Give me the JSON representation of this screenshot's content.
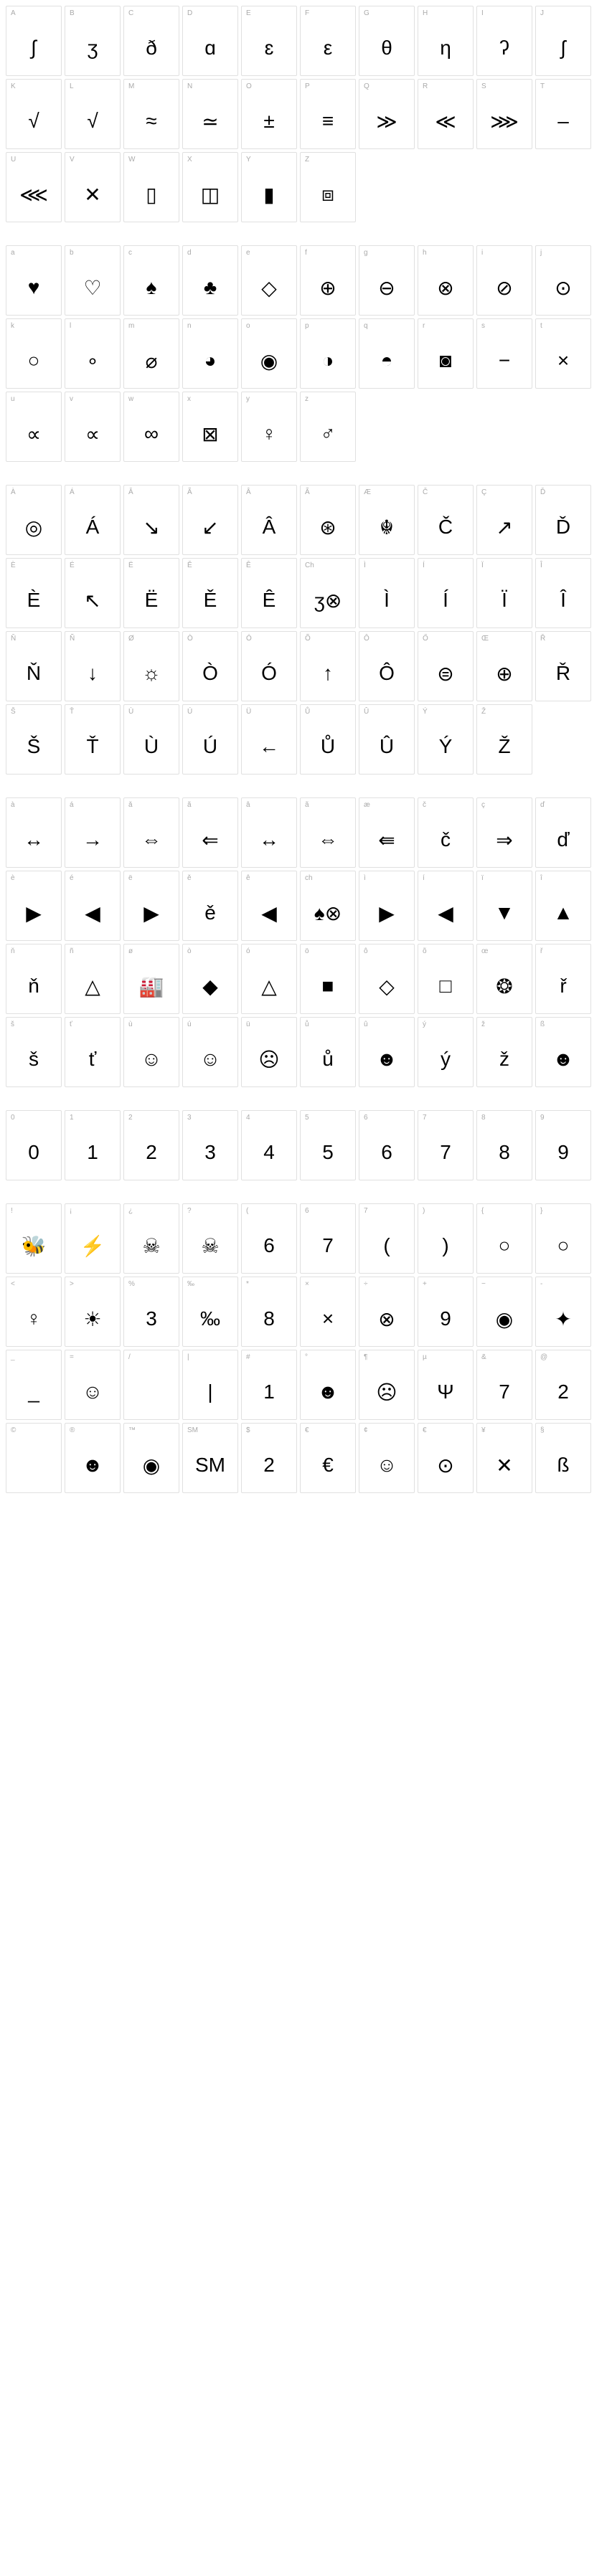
{
  "sections": [
    {
      "cells": [
        {
          "label": "A",
          "glyph": "∫"
        },
        {
          "label": "B",
          "glyph": "ʒ"
        },
        {
          "label": "C",
          "glyph": "ð"
        },
        {
          "label": "D",
          "glyph": "ɑ"
        },
        {
          "label": "E",
          "glyph": "ɛ"
        },
        {
          "label": "F",
          "glyph": "ε"
        },
        {
          "label": "G",
          "glyph": "θ"
        },
        {
          "label": "H",
          "glyph": "η"
        },
        {
          "label": "I",
          "glyph": "ʔ"
        },
        {
          "label": "J",
          "glyph": "ʃ"
        },
        {
          "label": "K",
          "glyph": "√"
        },
        {
          "label": "L",
          "glyph": "√"
        },
        {
          "label": "M",
          "glyph": "≈"
        },
        {
          "label": "N",
          "glyph": "≃"
        },
        {
          "label": "O",
          "glyph": "±"
        },
        {
          "label": "P",
          "glyph": "≡"
        },
        {
          "label": "Q",
          "glyph": "≫"
        },
        {
          "label": "R",
          "glyph": "≪"
        },
        {
          "label": "S",
          "glyph": "⋙"
        },
        {
          "label": "T",
          "glyph": "–"
        },
        {
          "label": "U",
          "glyph": "⋘"
        },
        {
          "label": "V",
          "glyph": "✕"
        },
        {
          "label": "W",
          "glyph": "▯"
        },
        {
          "label": "X",
          "glyph": "◫"
        },
        {
          "label": "Y",
          "glyph": "▮"
        },
        {
          "label": "Z",
          "glyph": "⧈"
        }
      ]
    },
    {
      "cells": [
        {
          "label": "a",
          "glyph": "♥"
        },
        {
          "label": "b",
          "glyph": "♡"
        },
        {
          "label": "c",
          "glyph": "♠"
        },
        {
          "label": "d",
          "glyph": "♣"
        },
        {
          "label": "e",
          "glyph": "◇"
        },
        {
          "label": "f",
          "glyph": "⊕"
        },
        {
          "label": "g",
          "glyph": "⊖"
        },
        {
          "label": "h",
          "glyph": "⊗"
        },
        {
          "label": "i",
          "glyph": "⊘"
        },
        {
          "label": "j",
          "glyph": "⊙"
        },
        {
          "label": "k",
          "glyph": "○"
        },
        {
          "label": "l",
          "glyph": "∘"
        },
        {
          "label": "m",
          "glyph": "⌀"
        },
        {
          "label": "n",
          "glyph": "◕"
        },
        {
          "label": "o",
          "glyph": "◉"
        },
        {
          "label": "p",
          "glyph": "◑"
        },
        {
          "label": "q",
          "glyph": "◓"
        },
        {
          "label": "r",
          "glyph": "◙"
        },
        {
          "label": "s",
          "glyph": "−"
        },
        {
          "label": "t",
          "glyph": "×"
        },
        {
          "label": "u",
          "glyph": "∝"
        },
        {
          "label": "v",
          "glyph": "∝"
        },
        {
          "label": "w",
          "glyph": "∞"
        },
        {
          "label": "x",
          "glyph": "⊠"
        },
        {
          "label": "y",
          "glyph": "♀"
        },
        {
          "label": "z",
          "glyph": "♂"
        }
      ]
    },
    {
      "cells": [
        {
          "label": "À",
          "glyph": "◎"
        },
        {
          "label": "Á",
          "glyph": "Á"
        },
        {
          "label": "Ǎ",
          "glyph": "↘"
        },
        {
          "label": "Ã",
          "glyph": "↙"
        },
        {
          "label": "Â",
          "glyph": "Â"
        },
        {
          "label": "Ã",
          "glyph": "⊛"
        },
        {
          "label": "Æ",
          "glyph": "☬"
        },
        {
          "label": "Č",
          "glyph": "Č"
        },
        {
          "label": "Ç",
          "glyph": "↗"
        },
        {
          "label": "Ď",
          "glyph": "Ď"
        },
        {
          "label": "È",
          "glyph": "È"
        },
        {
          "label": "É",
          "glyph": "↖"
        },
        {
          "label": "Ë",
          "glyph": "Ë"
        },
        {
          "label": "Ě",
          "glyph": "Ě"
        },
        {
          "label": "Ê",
          "glyph": "Ê"
        },
        {
          "label": "Ch",
          "glyph": "ʒ⊗"
        },
        {
          "label": "Ì",
          "glyph": "Ì"
        },
        {
          "label": "Í",
          "glyph": "Í"
        },
        {
          "label": "Ï",
          "glyph": "Ï"
        },
        {
          "label": "Î",
          "glyph": "Î"
        },
        {
          "label": "Ň",
          "glyph": "Ň"
        },
        {
          "label": "Ñ",
          "glyph": "↓"
        },
        {
          "label": "Ø",
          "glyph": "☼"
        },
        {
          "label": "Ò",
          "glyph": "Ò"
        },
        {
          "label": "Ó",
          "glyph": "Ó"
        },
        {
          "label": "Õ",
          "glyph": "↑"
        },
        {
          "label": "Ô",
          "glyph": "Ô"
        },
        {
          "label": "Ő",
          "glyph": "⊜"
        },
        {
          "label": "Œ",
          "glyph": "⊕"
        },
        {
          "label": "Ř",
          "glyph": "Ř"
        },
        {
          "label": "Š",
          "glyph": "Š"
        },
        {
          "label": "Ť",
          "glyph": "Ť"
        },
        {
          "label": "Ù",
          "glyph": "Ù"
        },
        {
          "label": "Ú",
          "glyph": "Ú"
        },
        {
          "label": "Ü",
          "glyph": "←"
        },
        {
          "label": "Ů",
          "glyph": "Ů"
        },
        {
          "label": "Û",
          "glyph": "Û"
        },
        {
          "label": "Ý",
          "glyph": "Ý"
        },
        {
          "label": "Ž",
          "glyph": "Ž"
        }
      ]
    },
    {
      "cells": [
        {
          "label": "à",
          "glyph": "↔"
        },
        {
          "label": "á",
          "glyph": "→"
        },
        {
          "label": "ǎ",
          "glyph": "⇔"
        },
        {
          "label": "ã",
          "glyph": "⇐"
        },
        {
          "label": "â",
          "glyph": "↔"
        },
        {
          "label": "ã",
          "glyph": "⇔"
        },
        {
          "label": "æ",
          "glyph": "⇚"
        },
        {
          "label": "č",
          "glyph": "č"
        },
        {
          "label": "ç",
          "glyph": "⇒"
        },
        {
          "label": "ď",
          "glyph": "ď"
        },
        {
          "label": "è",
          "glyph": "▶"
        },
        {
          "label": "é",
          "glyph": "◀"
        },
        {
          "label": "ë",
          "glyph": "▶"
        },
        {
          "label": "ě",
          "glyph": "ě"
        },
        {
          "label": "ê",
          "glyph": "◀"
        },
        {
          "label": "ch",
          "glyph": "♠⊗"
        },
        {
          "label": "ì",
          "glyph": "▶"
        },
        {
          "label": "í",
          "glyph": "◀"
        },
        {
          "label": "ï",
          "glyph": "▼"
        },
        {
          "label": "î",
          "glyph": "▲"
        },
        {
          "label": "ň",
          "glyph": "ň"
        },
        {
          "label": "ñ",
          "glyph": "△"
        },
        {
          "label": "ø",
          "glyph": "🏭"
        },
        {
          "label": "ò",
          "glyph": "◆"
        },
        {
          "label": "ó",
          "glyph": "△"
        },
        {
          "label": "ö",
          "glyph": "■"
        },
        {
          "label": "ô",
          "glyph": "◇"
        },
        {
          "label": "õ",
          "glyph": "□"
        },
        {
          "label": "œ",
          "glyph": "❂"
        },
        {
          "label": "ř",
          "glyph": "ř"
        },
        {
          "label": "š",
          "glyph": "š"
        },
        {
          "label": "ť",
          "glyph": "ť"
        },
        {
          "label": "ù",
          "glyph": "☺"
        },
        {
          "label": "ú",
          "glyph": "☺"
        },
        {
          "label": "ü",
          "glyph": "☹"
        },
        {
          "label": "ů",
          "glyph": "ů"
        },
        {
          "label": "û",
          "glyph": "☻"
        },
        {
          "label": "ý",
          "glyph": "ý"
        },
        {
          "label": "ž",
          "glyph": "ž"
        },
        {
          "label": "ß",
          "glyph": "☻"
        }
      ]
    },
    {
      "cells": [
        {
          "label": "0",
          "glyph": "0"
        },
        {
          "label": "1",
          "glyph": "1"
        },
        {
          "label": "2",
          "glyph": "2"
        },
        {
          "label": "3",
          "glyph": "3"
        },
        {
          "label": "4",
          "glyph": "4"
        },
        {
          "label": "5",
          "glyph": "5"
        },
        {
          "label": "6",
          "glyph": "6"
        },
        {
          "label": "7",
          "glyph": "7"
        },
        {
          "label": "8",
          "glyph": "8"
        },
        {
          "label": "9",
          "glyph": "9"
        }
      ]
    },
    {
      "cells": [
        {
          "label": "!",
          "glyph": "🐝"
        },
        {
          "label": "¡",
          "glyph": "⚡"
        },
        {
          "label": "¿",
          "glyph": "☠"
        },
        {
          "label": "?",
          "glyph": "☠"
        },
        {
          "label": "(",
          "glyph": "6"
        },
        {
          "label": "6",
          "glyph": "7"
        },
        {
          "label": "7",
          "glyph": "("
        },
        {
          "label": ")",
          "glyph": ")"
        },
        {
          "label": "{",
          "glyph": "○"
        },
        {
          "label": "}",
          "glyph": "○"
        },
        {
          "label": "<",
          "glyph": "♀"
        },
        {
          "label": ">",
          "glyph": "☀"
        },
        {
          "label": "%",
          "glyph": "3"
        },
        {
          "label": "‰",
          "glyph": "‰"
        },
        {
          "label": "*",
          "glyph": "8"
        },
        {
          "label": "×",
          "glyph": "×"
        },
        {
          "label": "÷",
          "glyph": "⊗"
        },
        {
          "label": "+",
          "glyph": "9"
        },
        {
          "label": "−",
          "glyph": "◉"
        },
        {
          "label": "-",
          "glyph": "✦"
        },
        {
          "label": "_",
          "glyph": "_"
        },
        {
          "label": "=",
          "glyph": "☺"
        },
        {
          "label": "/",
          "glyph": " "
        },
        {
          "label": "|",
          "glyph": "|"
        },
        {
          "label": "#",
          "glyph": "1"
        },
        {
          "label": "°",
          "glyph": "☻"
        },
        {
          "label": "¶",
          "glyph": "☹"
        },
        {
          "label": "µ",
          "glyph": "Ψ"
        },
        {
          "label": "&",
          "glyph": "7"
        },
        {
          "label": "@",
          "glyph": "2"
        },
        {
          "label": "©",
          "glyph": " "
        },
        {
          "label": "®",
          "glyph": "☻"
        },
        {
          "label": "™",
          "glyph": "◉"
        },
        {
          "label": "SM",
          "glyph": "SM"
        },
        {
          "label": "$",
          "glyph": "2"
        },
        {
          "label": "€",
          "glyph": "€"
        },
        {
          "label": "¢",
          "glyph": "☺"
        },
        {
          "label": "€",
          "glyph": "⊙"
        },
        {
          "label": "¥",
          "glyph": "✕"
        },
        {
          "label": "§",
          "glyph": "ß"
        }
      ]
    }
  ],
  "cell_style": {
    "width": 78,
    "height": 98,
    "border_color": "#e0e0e0",
    "label_color": "#aaaaaa",
    "label_fontsize": 10,
    "glyph_fontsize": 28,
    "glyph_color": "#000000",
    "background": "#ffffff"
  }
}
